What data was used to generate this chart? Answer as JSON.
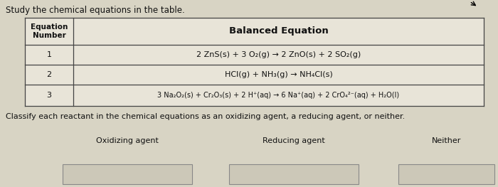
{
  "title": "Study the chemical equations in the table.",
  "col1_header": "Equation\nNumber",
  "col2_header": "Balanced Equation",
  "rows": [
    [
      "1",
      "2 ZnS(s) + 3 O₂(g) → 2 ZnO(s) + 2 SO₂(g)"
    ],
    [
      "2",
      "HCl(g) + NH₃(g) → NH₄Cl(s)"
    ],
    [
      "3",
      "3 Na₂O₂(s) + Cr₂O₃(s) + 2 H⁺(aq) → 6 Na⁺(aq) + 2 CrO₄²⁻(aq) + H₂O(l)"
    ]
  ],
  "classify_text": "Classify each reactant in the chemical equations as an oxidizing agent, a reducing agent, or neither.",
  "box_labels": [
    "Oxidizing agent",
    "Reducing agent",
    "Neither"
  ],
  "bg_color": "#d8d4c4",
  "cell_bg": "#e8e4d8",
  "border_color": "#444444",
  "text_color": "#111111",
  "box_fill": "#ccc8b8",
  "box_border": "#888888",
  "fig_w": 7.0,
  "fig_h": 2.63,
  "dpi": 100
}
